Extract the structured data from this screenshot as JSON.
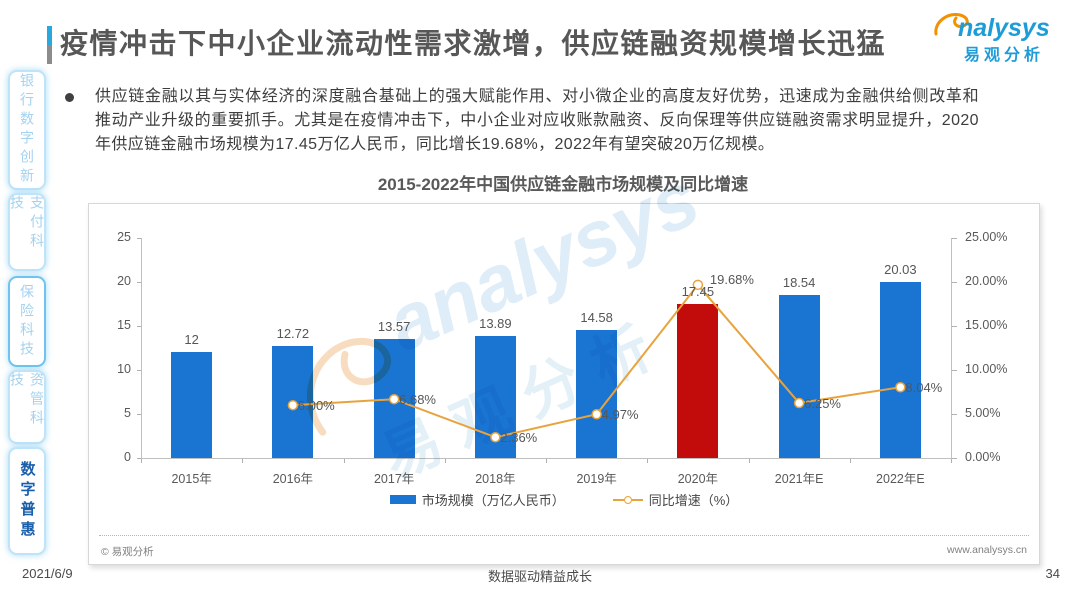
{
  "page": {
    "title": "疫情冲击下中小企业流动性需求激增，供应链融资规模增长迅猛",
    "bullet_text": "供应链金融以其与实体经济的深度融合基础上的强大赋能作用、对小微企业的高度友好优势，迅速成为金融供给侧改革和推动产业升级的重要抓手。尤其是在疫情冲击下，中小企业对应收账款融资、反向保理等供应链融资需求明显提升，2020年供应链金融市场规模为17.45万亿人民币，同比增长19.68%，2022年有望突破20万亿规模。",
    "footer": {
      "date": "2021/6/9",
      "slogan": "数据驱动精益成长",
      "page_number": "34"
    }
  },
  "logo": {
    "brand": "nalysys",
    "brand_cn": "易观分析"
  },
  "sidebar": {
    "items": [
      {
        "label": "银行数字创新",
        "active": false
      },
      {
        "label": "支付科技",
        "active": false
      },
      {
        "label": "保险科技",
        "active": false
      },
      {
        "label": "资管科技",
        "active": false
      },
      {
        "label": "数字普惠",
        "active": true
      }
    ]
  },
  "chart": {
    "title": "2015-2022年中国供应链金融市场规模及同比增速",
    "legend": [
      "市场规模（万亿人民币）",
      "同比增速（%）"
    ],
    "watermark_en": "analysys",
    "watermark_cn": "易观分析",
    "source": "© 易观分析",
    "website": "www.analysys.cn"
  },
  "chart_data": {
    "type": "combo-bar-line",
    "title": "2015-2022年中国供应链金融市场规模及同比增速",
    "categories": [
      "2015年",
      "2016年",
      "2017年",
      "2018年",
      "2019年",
      "2020年",
      "2021年E",
      "2022年E"
    ],
    "series": [
      {
        "name": "市场规模（万亿人民币）",
        "type": "bar",
        "values": [
          12,
          12.72,
          13.57,
          13.89,
          14.58,
          17.45,
          18.54,
          20.03
        ],
        "labels": [
          "12",
          "12.72",
          "13.57",
          "13.89",
          "14.58",
          "17.45",
          "18.54",
          "20.03"
        ]
      },
      {
        "name": "同比增速（%）",
        "type": "line",
        "values": [
          null,
          6.0,
          6.68,
          2.36,
          4.97,
          19.68,
          6.25,
          8.04
        ],
        "labels": [
          "",
          "6.00%",
          "6.68%",
          "2.36%",
          "4.97%",
          "19.68%",
          "6.25%",
          "8.04%"
        ],
        "label_offsets": {
          "5": [
            12,
            -13
          ]
        }
      }
    ],
    "left_axis": {
      "min": 0,
      "max": 25,
      "ticks": [
        0,
        5,
        10,
        15,
        20,
        25
      ]
    },
    "right_axis": {
      "min": 0,
      "max": 25,
      "ticks": [
        "0.00%",
        "5.00%",
        "10.00%",
        "15.00%",
        "20.00%",
        "25.00%"
      ]
    },
    "highlight_index": 5,
    "legend_position": "bottom",
    "grid": false,
    "colors": {
      "bar": "#1A75D2",
      "bar_highlight": "#C20C0C",
      "line": "#E8A33D"
    }
  }
}
